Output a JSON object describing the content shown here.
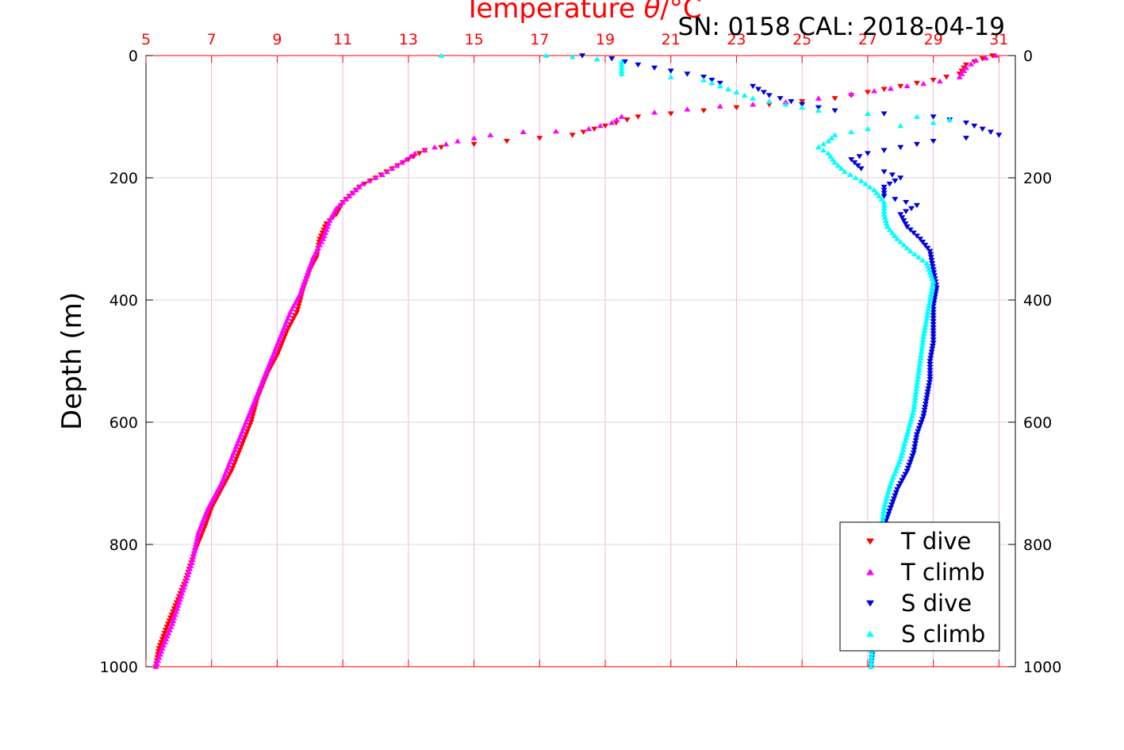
{
  "chart_data": {
    "type": "scatter",
    "title": "SN: 0158  CAL: 2018-04-19",
    "xlabel_prefix": "Temperature ",
    "xlabel_theta": "θ",
    "xlabel_suffix": "/°C",
    "ylabel": "Depth (m)",
    "xlim": [
      5,
      31.5
    ],
    "ylim": [
      0,
      1000
    ],
    "y_reversed": true,
    "grid": true,
    "legend_position": "bottom-right",
    "x_ticks": [
      "5",
      "7",
      "9",
      "11",
      "13",
      "15",
      "17",
      "19",
      "21",
      "23",
      "25",
      "27",
      "29",
      "31"
    ],
    "y_ticks": [
      "0",
      "200",
      "400",
      "600",
      "800",
      "1000"
    ],
    "colors": {
      "t_dive": "#ff0000",
      "t_climb": "#ff00ff",
      "s_dive": "#0000dd",
      "s_climb": "#00ffff",
      "x_axis": "#ff0000",
      "grid_x": "#f0b8e0",
      "grid_y": "#d8d8d8"
    },
    "series": [
      {
        "name": "T dive",
        "marker": "triangle-down",
        "color": "#ff0000",
        "points": [
          [
            30.8,
            0
          ],
          [
            30.5,
            5
          ],
          [
            30.0,
            15
          ],
          [
            29.8,
            30
          ],
          [
            29.0,
            40
          ],
          [
            28.0,
            50
          ],
          [
            27.0,
            60
          ],
          [
            26.0,
            70
          ],
          [
            25.0,
            75
          ],
          [
            24.0,
            80
          ],
          [
            23.0,
            85
          ],
          [
            22.0,
            90
          ],
          [
            21.0,
            95
          ],
          [
            20.0,
            100
          ],
          [
            19.0,
            115
          ],
          [
            18.0,
            130
          ],
          [
            17.0,
            135
          ],
          [
            16.0,
            140
          ],
          [
            15.0,
            145
          ],
          [
            14.0,
            150
          ],
          [
            13.5,
            155
          ],
          [
            13.0,
            170
          ],
          [
            12.5,
            185
          ],
          [
            12.0,
            200
          ],
          [
            11.5,
            215
          ],
          [
            11.0,
            240
          ],
          [
            10.8,
            260
          ],
          [
            10.5,
            275
          ],
          [
            10.3,
            300
          ],
          [
            10.2,
            330
          ],
          [
            10.0,
            350
          ],
          [
            9.8,
            380
          ],
          [
            9.6,
            420
          ],
          [
            9.3,
            450
          ],
          [
            9.0,
            490
          ],
          [
            8.7,
            520
          ],
          [
            8.4,
            560
          ],
          [
            8.2,
            600
          ],
          [
            7.9,
            640
          ],
          [
            7.6,
            680
          ],
          [
            7.3,
            710
          ],
          [
            7.0,
            740
          ],
          [
            6.8,
            770
          ],
          [
            6.5,
            810
          ],
          [
            6.2,
            860
          ],
          [
            5.9,
            900
          ],
          [
            5.6,
            940
          ],
          [
            5.4,
            970
          ],
          [
            5.3,
            1000
          ]
        ]
      },
      {
        "name": "T climb",
        "marker": "triangle-up",
        "color": "#ff00ff",
        "points": [
          [
            30.9,
            0
          ],
          [
            30.3,
            8
          ],
          [
            30.0,
            20
          ],
          [
            29.8,
            35
          ],
          [
            29.2,
            42
          ],
          [
            28.2,
            50
          ],
          [
            27.2,
            58
          ],
          [
            26.5,
            63
          ],
          [
            25.5,
            70
          ],
          [
            24.5,
            76
          ],
          [
            23.5,
            80
          ],
          [
            22.5,
            83
          ],
          [
            21.5,
            88
          ],
          [
            20.5,
            93
          ],
          [
            19.5,
            100
          ],
          [
            19.2,
            110
          ],
          [
            18.5,
            120
          ],
          [
            17.5,
            124
          ],
          [
            16.5,
            125
          ],
          [
            15.5,
            130
          ],
          [
            14.5,
            140
          ],
          [
            13.8,
            150
          ],
          [
            13.2,
            160
          ],
          [
            12.8,
            175
          ],
          [
            12.2,
            195
          ],
          [
            11.6,
            210
          ],
          [
            11.2,
            230
          ],
          [
            10.8,
            250
          ],
          [
            10.6,
            270
          ],
          [
            10.4,
            300
          ],
          [
            10.1,
            330
          ],
          [
            9.9,
            360
          ],
          [
            9.7,
            390
          ],
          [
            9.4,
            420
          ],
          [
            9.1,
            460
          ],
          [
            8.8,
            500
          ],
          [
            8.5,
            540
          ],
          [
            8.2,
            580
          ],
          [
            7.9,
            620
          ],
          [
            7.6,
            660
          ],
          [
            7.3,
            700
          ],
          [
            6.9,
            740
          ],
          [
            6.6,
            780
          ],
          [
            6.4,
            830
          ],
          [
            6.1,
            880
          ],
          [
            5.8,
            930
          ],
          [
            5.5,
            970
          ],
          [
            5.3,
            1000
          ]
        ]
      },
      {
        "name": "S dive",
        "marker": "triangle-down",
        "color": "#0000dd",
        "points": [
          [
            18.3,
            0
          ],
          [
            19.2,
            5
          ],
          [
            20.0,
            15
          ],
          [
            21.0,
            25
          ],
          [
            22.0,
            35
          ],
          [
            22.5,
            45
          ],
          [
            23.5,
            50
          ],
          [
            24.0,
            65
          ],
          [
            25.0,
            80
          ],
          [
            26.0,
            90
          ],
          [
            27.5,
            95
          ],
          [
            29.0,
            100
          ],
          [
            30.0,
            110
          ],
          [
            30.5,
            120
          ],
          [
            31.0,
            130
          ],
          [
            30.0,
            135
          ],
          [
            29.0,
            140
          ],
          [
            28.0,
            150
          ],
          [
            27.0,
            160
          ],
          [
            26.5,
            170
          ],
          [
            26.8,
            185
          ],
          [
            27.5,
            190
          ],
          [
            28.0,
            200
          ],
          [
            27.5,
            215
          ],
          [
            27.5,
            230
          ],
          [
            28.5,
            245
          ],
          [
            28.0,
            260
          ],
          [
            28.2,
            280
          ],
          [
            28.6,
            300
          ],
          [
            28.9,
            320
          ],
          [
            29.0,
            350
          ],
          [
            29.1,
            380
          ],
          [
            29.0,
            410
          ],
          [
            29.0,
            440
          ],
          [
            29.0,
            470
          ],
          [
            28.9,
            500
          ],
          [
            28.9,
            530
          ],
          [
            28.8,
            560
          ],
          [
            28.7,
            590
          ],
          [
            28.5,
            620
          ],
          [
            28.4,
            650
          ],
          [
            28.2,
            680
          ],
          [
            27.9,
            710
          ],
          [
            27.7,
            740
          ],
          [
            27.5,
            770
          ],
          [
            27.4,
            800
          ],
          [
            27.3,
            850
          ],
          [
            27.2,
            900
          ],
          [
            27.2,
            950
          ],
          [
            27.1,
            1000
          ]
        ]
      },
      {
        "name": "S climb",
        "marker": "triangle-up",
        "color": "#00ffff",
        "points": [
          [
            14.0,
            0
          ],
          [
            17.2,
            0
          ],
          [
            18.0,
            2
          ],
          [
            19.5,
            10
          ],
          [
            19.5,
            30
          ],
          [
            21.0,
            35
          ],
          [
            22.0,
            40
          ],
          [
            22.5,
            50
          ],
          [
            23.0,
            60
          ],
          [
            23.5,
            70
          ],
          [
            24.5,
            80
          ],
          [
            25.5,
            90
          ],
          [
            27.0,
            95
          ],
          [
            28.5,
            100
          ],
          [
            29.5,
            105
          ],
          [
            29.0,
            110
          ],
          [
            28.0,
            115
          ],
          [
            27.0,
            120
          ],
          [
            26.0,
            130
          ],
          [
            25.8,
            140
          ],
          [
            25.5,
            150
          ],
          [
            25.8,
            160
          ],
          [
            26.0,
            175
          ],
          [
            26.3,
            190
          ],
          [
            26.8,
            205
          ],
          [
            27.2,
            220
          ],
          [
            27.5,
            240
          ],
          [
            27.5,
            260
          ],
          [
            27.6,
            280
          ],
          [
            27.9,
            300
          ],
          [
            28.3,
            320
          ],
          [
            28.8,
            340
          ],
          [
            29.0,
            370
          ],
          [
            28.9,
            400
          ],
          [
            28.8,
            430
          ],
          [
            28.7,
            460
          ],
          [
            28.6,
            500
          ],
          [
            28.5,
            540
          ],
          [
            28.4,
            580
          ],
          [
            28.2,
            620
          ],
          [
            28.0,
            660
          ],
          [
            27.7,
            700
          ],
          [
            27.5,
            740
          ],
          [
            27.4,
            780
          ],
          [
            27.3,
            850
          ],
          [
            27.2,
            920
          ],
          [
            27.1,
            1000
          ]
        ]
      }
    ]
  }
}
